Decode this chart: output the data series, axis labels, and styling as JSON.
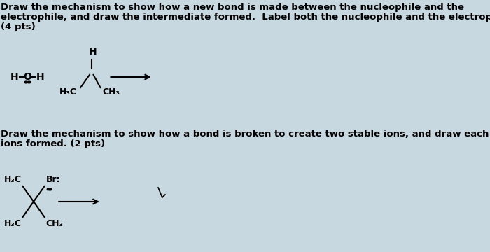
{
  "background_color": "#c8d8e0",
  "text_color": "#000000",
  "title_line1": "Draw the mechanism to show how a new bond is made between the nucleophile and the",
  "title_line2": "electrophile, and draw the intermediate formed.  Label both the nucleophile and the electrophile.",
  "title_line3": "(4 pts)",
  "section2_line1": "Draw the mechanism to show how a bond is broken to create two stable ions, and draw each of the",
  "section2_line2": "ions formed. (2 pts)",
  "fig_width": 7.0,
  "fig_height": 3.6,
  "dpi": 100
}
